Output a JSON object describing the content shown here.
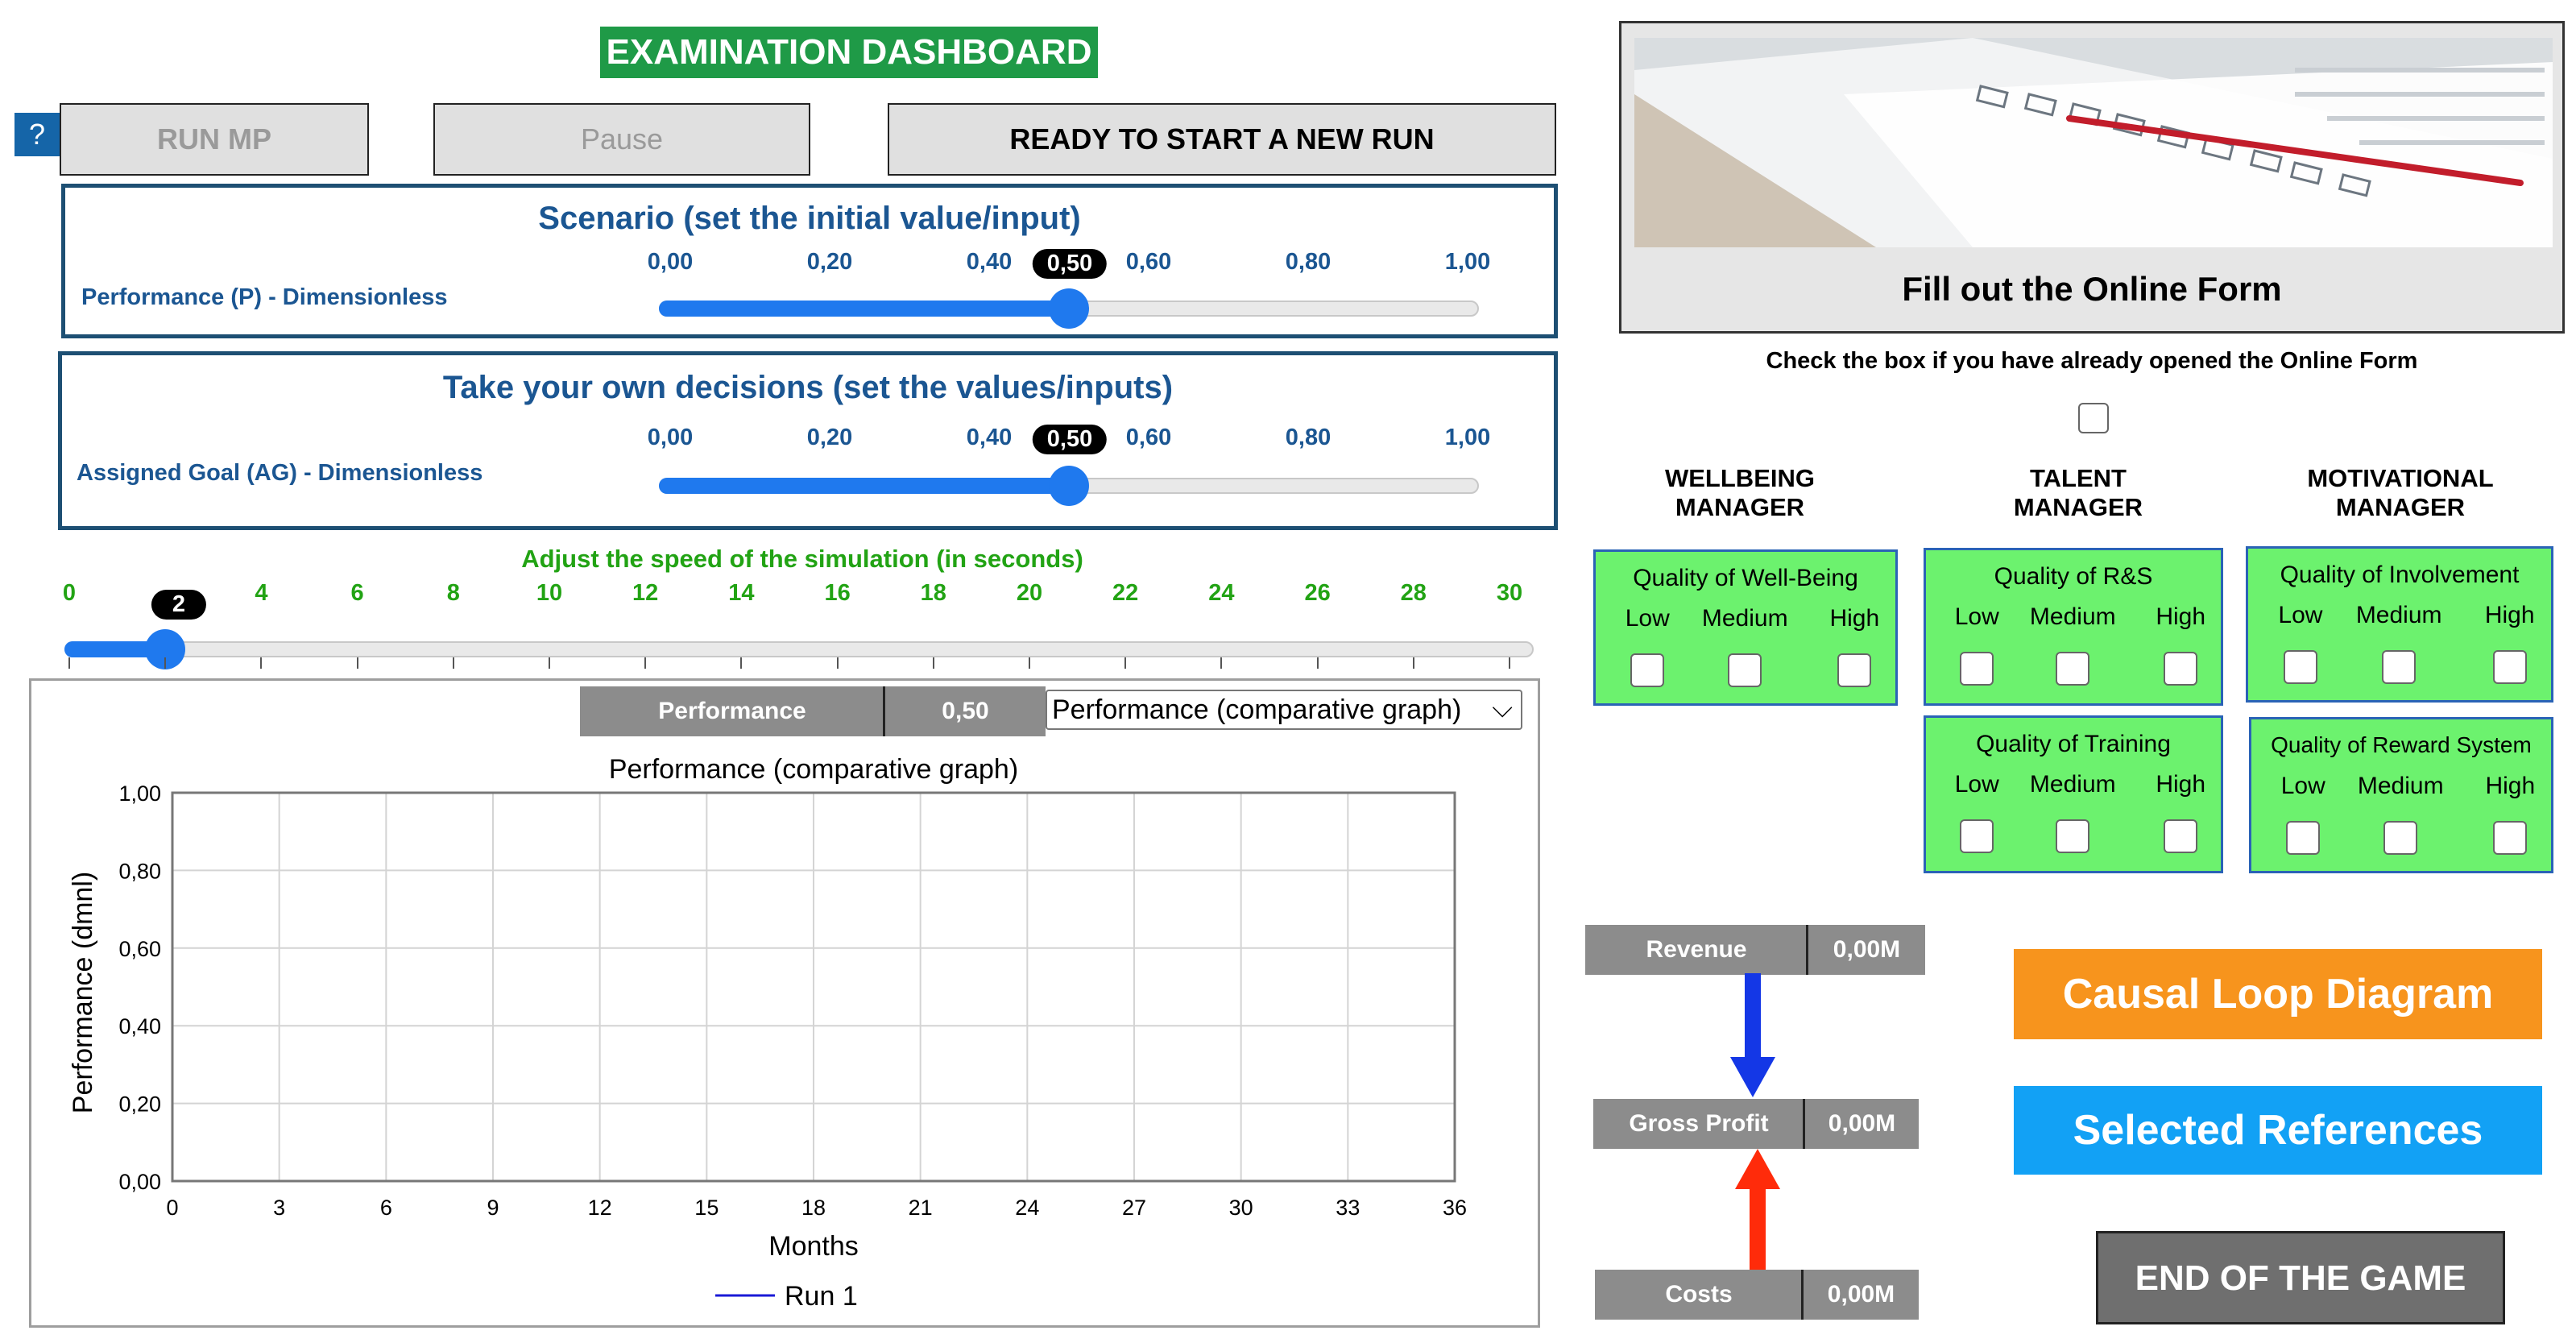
{
  "header": {
    "title": "EXAMINATION DASHBOARD",
    "help_label": "?"
  },
  "toolbar": {
    "run_label": "RUN MP",
    "pause_label": "Pause",
    "status_label": "READY TO START A NEW RUN"
  },
  "scenario": {
    "title": "Scenario (set the initial value/input)",
    "label": "Performance (P) - Dimensionless",
    "ticks": [
      "0,00",
      "0,20",
      "0,40",
      "0,60",
      "0,80",
      "1,00"
    ],
    "value_label": "0,50",
    "value": 0.5
  },
  "decisions": {
    "title": "Take your own decisions (set the values/inputs)",
    "label": "Assigned Goal (AG) - Dimensionless",
    "ticks": [
      "0,00",
      "0,20",
      "0,40",
      "0,60",
      "0,80",
      "1,00"
    ],
    "value_label": "0,50",
    "value": 0.5
  },
  "speed": {
    "title": "Adjust the speed of the simulation (in seconds)",
    "ticks": [
      "0",
      "4",
      "6",
      "8",
      "10",
      "12",
      "14",
      "16",
      "18",
      "20",
      "22",
      "24",
      "26",
      "28",
      "30"
    ],
    "value_label": "2",
    "value": 2,
    "min": 0,
    "max": 30
  },
  "graph_panel": {
    "readout_label": "Performance",
    "readout_value": "0,50",
    "dropdown_value": "Performance (comparative graph)"
  },
  "chart_data": {
    "type": "line",
    "title": "Performance (comparative graph)",
    "xlabel": "Months",
    "ylabel": "Performance (dmnl)",
    "xlim": [
      0,
      36
    ],
    "ylim": [
      0,
      1
    ],
    "x_ticks": [
      "0",
      "3",
      "6",
      "9",
      "12",
      "15",
      "18",
      "21",
      "24",
      "27",
      "30",
      "33",
      "36"
    ],
    "y_ticks": [
      "0,00",
      "0,20",
      "0,40",
      "0,60",
      "0,80",
      "1,00"
    ],
    "grid": true,
    "legend_position": "bottom",
    "series": [
      {
        "name": "Run 1",
        "color": "#1a1ad6",
        "x": [],
        "y": []
      }
    ]
  },
  "online_form": {
    "caption": "Fill out the Online Form",
    "check_prompt": "Check the box if you have already opened the Online Form"
  },
  "managers": {
    "wellbeing": "WELLBEING\nMANAGER",
    "talent": "TALENT\nMANAGER",
    "motivational": "MOTIVATIONAL\nMANAGER"
  },
  "quality": {
    "levels": [
      "Low",
      "Medium",
      "High"
    ],
    "wellbeing": "Quality of Well-Being",
    "rs": "Quality of R&S",
    "involvement": "Quality of Involvement",
    "training": "Quality of Training",
    "reward": "Quality of Reward System"
  },
  "metrics": {
    "revenue_label": "Revenue",
    "revenue_value": "0,00M",
    "profit_label": "Gross Profit",
    "profit_value": "0,00M",
    "costs_label": "Costs",
    "costs_value": "0,00M"
  },
  "links": {
    "causal": "Causal Loop Diagram",
    "references": "Selected References",
    "end": "END OF THE GAME"
  },
  "colors": {
    "accent_blue": "#1f79ee",
    "brand_green": "#1f9a47",
    "orange": "#f7941d",
    "sky": "#12a1f5"
  }
}
